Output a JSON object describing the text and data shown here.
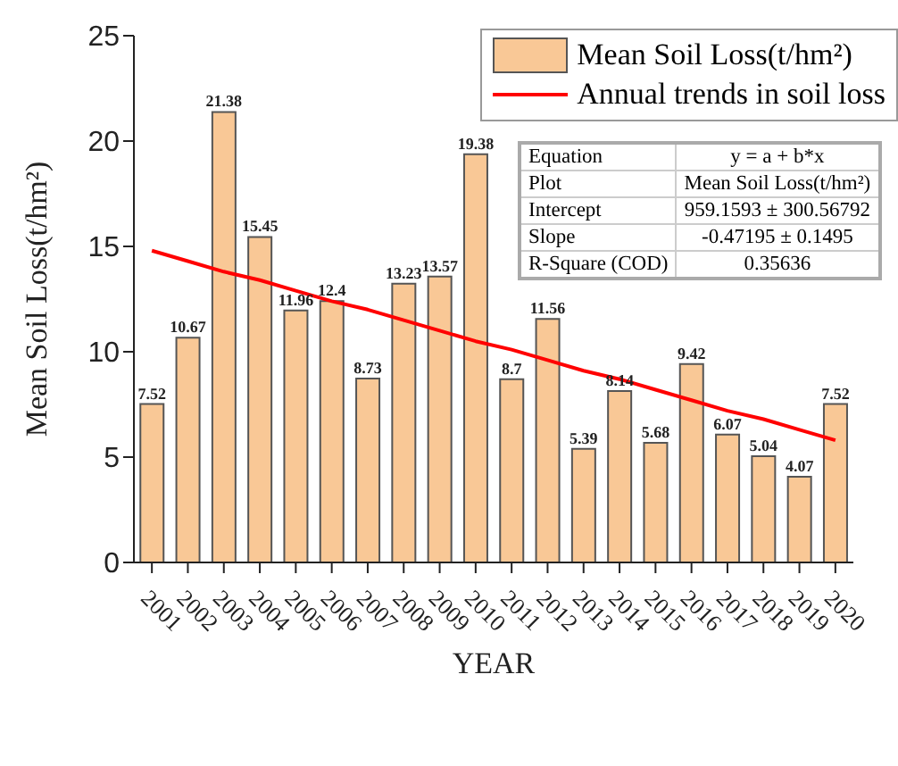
{
  "chart_data": {
    "type": "bar",
    "xlabel": "YEAR",
    "ylabel": "Mean Soil Loss(t/hm²)",
    "categories": [
      "2001",
      "2002",
      "2003",
      "2004",
      "2005",
      "2006",
      "2007",
      "2008",
      "2009",
      "2010",
      "2011",
      "2012",
      "2013",
      "2014",
      "2015",
      "2016",
      "2017",
      "2018",
      "2019",
      "2020"
    ],
    "series": [
      {
        "name": "Mean Soil Loss(t/hm²)",
        "color": "#f9c896",
        "values": [
          7.52,
          10.67,
          21.38,
          15.45,
          11.96,
          12.4,
          8.73,
          13.23,
          13.57,
          19.38,
          8.7,
          11.56,
          5.39,
          8.14,
          5.68,
          9.42,
          6.07,
          5.04,
          4.07,
          7.52
        ],
        "value_labels": [
          "7.52",
          "10.67",
          "21.38",
          "15.45",
          "11.96",
          "12.4",
          "8.73",
          "13.23",
          "13.57",
          "19.38",
          "8.7",
          "11.56",
          "5.39",
          "8.14",
          "5.68",
          "9.42",
          "6.07",
          "5.04",
          "4.07",
          "7.52"
        ]
      },
      {
        "name": "Annual trends in soil loss",
        "type": "line",
        "color": "#ff0000",
        "values": [
          14.8,
          14.3,
          13.8,
          13.4,
          12.9,
          12.4,
          12.0,
          11.5,
          11.0,
          10.5,
          10.1,
          9.6,
          9.1,
          8.7,
          8.2,
          7.7,
          7.2,
          6.8,
          6.3,
          5.8
        ]
      }
    ],
    "ylim": [
      0,
      25
    ],
    "yticks": [
      0,
      5,
      10,
      15,
      20,
      25
    ],
    "grid": false,
    "legend": "top right",
    "marker": "none",
    "annotations": [
      "Equation",
      "y = a + b*x",
      "Plot",
      "Mean Soil Loss(t/hm²)",
      "Intercept",
      "959.1593 ± 300.56792",
      "Slope",
      "-0.47195 ± 0.1495",
      "R-Square (COD)",
      "0.35636"
    ]
  }
}
